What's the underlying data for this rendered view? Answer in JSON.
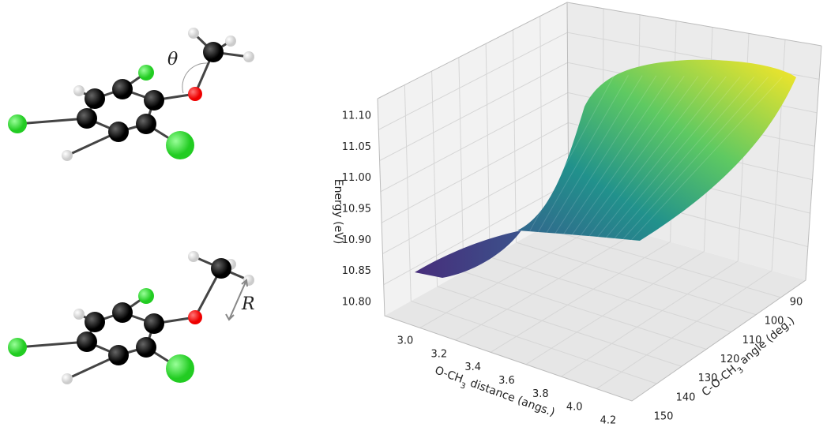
{
  "molecules": [
    {
      "label": "θ"
    },
    {
      "label": "R"
    }
  ],
  "plot": {
    "z_axis": {
      "title": "Energy (eV)",
      "ticks": [
        "10.80",
        "10.85",
        "10.90",
        "10.95",
        "11.00",
        "11.05",
        "11.10"
      ]
    },
    "x_axis": {
      "title": [
        "O-CH",
        "3",
        " distance (angs.)"
      ],
      "ticks": [
        "3.0",
        "3.2",
        "3.4",
        "3.6",
        "3.8",
        "4.0",
        "4.2"
      ]
    },
    "y_axis": {
      "title": [
        "C-O-CH",
        "3",
        " angle (deg.)"
      ],
      "ticks": [
        "90",
        "100",
        "110",
        "120",
        "130",
        "140",
        "150"
      ]
    }
  }
}
